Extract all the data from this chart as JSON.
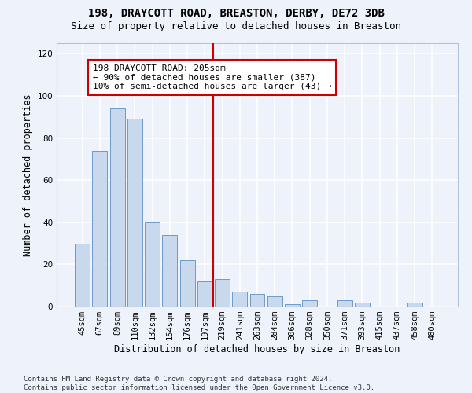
{
  "title": "198, DRAYCOTT ROAD, BREASTON, DERBY, DE72 3DB",
  "subtitle": "Size of property relative to detached houses in Breaston",
  "xlabel": "Distribution of detached houses by size in Breaston",
  "ylabel": "Number of detached properties",
  "categories": [
    "45sqm",
    "67sqm",
    "89sqm",
    "110sqm",
    "132sqm",
    "154sqm",
    "176sqm",
    "197sqm",
    "219sqm",
    "241sqm",
    "263sqm",
    "284sqm",
    "306sqm",
    "328sqm",
    "350sqm",
    "371sqm",
    "393sqm",
    "415sqm",
    "437sqm",
    "458sqm",
    "480sqm"
  ],
  "values": [
    30,
    74,
    94,
    89,
    40,
    34,
    22,
    12,
    13,
    7,
    6,
    5,
    1,
    3,
    0,
    3,
    2,
    0,
    0,
    2,
    0
  ],
  "bar_color": "#c8d9ee",
  "bar_edge_color": "#5b8ec4",
  "background_color": "#eef2fb",
  "grid_color": "#ffffff",
  "ylim": [
    0,
    125
  ],
  "yticks": [
    0,
    20,
    40,
    60,
    80,
    100,
    120
  ],
  "vline_x": 7.5,
  "vline_color": "#cc0000",
  "annotation_text": "198 DRAYCOTT ROAD: 205sqm\n← 90% of detached houses are smaller (387)\n10% of semi-detached houses are larger (43) →",
  "annotation_box_color": "#ffffff",
  "annotation_box_edge": "#cc0000",
  "footer": "Contains HM Land Registry data © Crown copyright and database right 2024.\nContains public sector information licensed under the Open Government Licence v3.0.",
  "title_fontsize": 10,
  "subtitle_fontsize": 9,
  "xlabel_fontsize": 8.5,
  "ylabel_fontsize": 8.5,
  "tick_fontsize": 7.5,
  "annotation_fontsize": 8,
  "footer_fontsize": 6.5
}
